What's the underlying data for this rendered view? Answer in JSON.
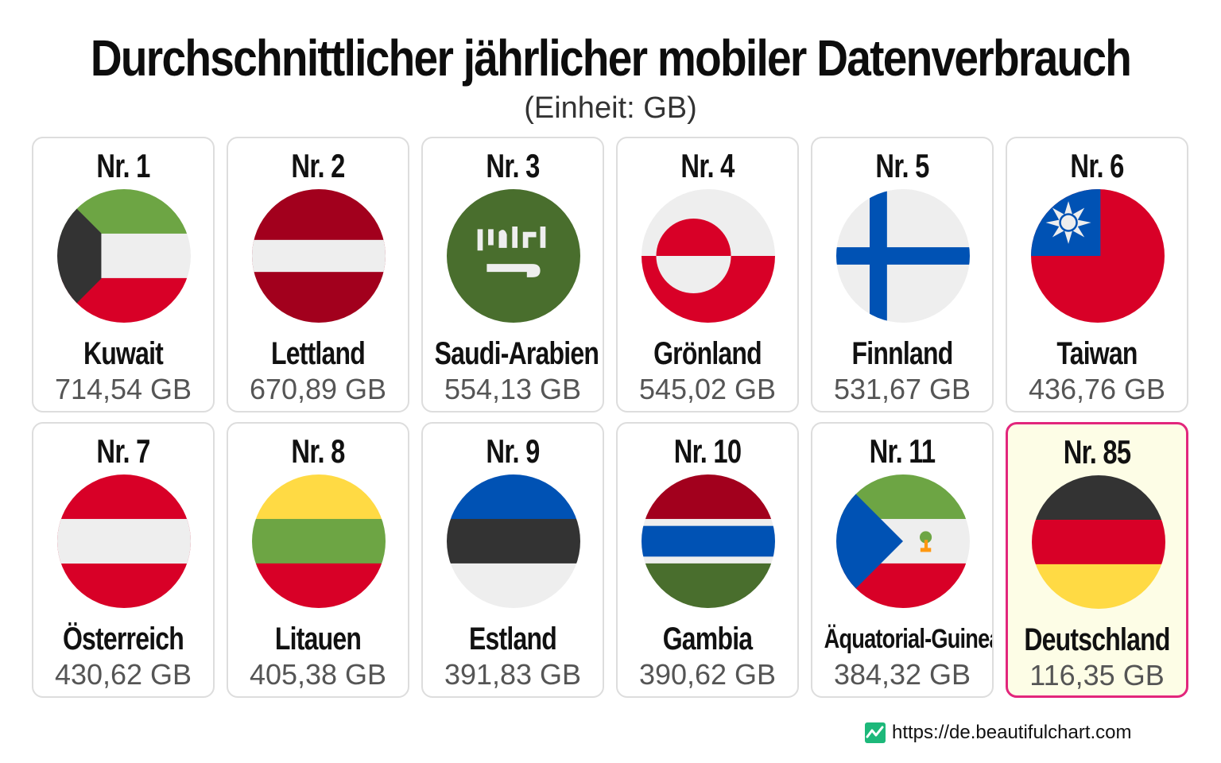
{
  "title": "Durchschnittlicher jährlicher mobiler Datenverbrauch",
  "subtitle": "(Einheit: GB)",
  "footer": {
    "url": "https://de.beautifulchart.com",
    "icon": "chart-line-icon",
    "icon_color": "#1db87a"
  },
  "highlight_color": "#e2267c",
  "chart_data": {
    "type": "table",
    "title": "Durchschnittlicher jährlicher mobiler Datenverbrauch",
    "unit": "GB",
    "entries": [
      {
        "rank": "Nr. 1",
        "country": "Kuwait",
        "value": "714,54 GB",
        "num": 714.54,
        "flag": "kuwait-flag-icon"
      },
      {
        "rank": "Nr. 2",
        "country": "Lettland",
        "value": "670,89 GB",
        "num": 670.89,
        "flag": "latvia-flag-icon"
      },
      {
        "rank": "Nr. 3",
        "country": "Saudi-Arabien",
        "value": "554,13 GB",
        "num": 554.13,
        "flag": "saudi-arabia-flag-icon"
      },
      {
        "rank": "Nr. 4",
        "country": "Grönland",
        "value": "545,02 GB",
        "num": 545.02,
        "flag": "greenland-flag-icon"
      },
      {
        "rank": "Nr. 5",
        "country": "Finnland",
        "value": "531,67 GB",
        "num": 531.67,
        "flag": "finland-flag-icon"
      },
      {
        "rank": "Nr. 6",
        "country": "Taiwan",
        "value": "436,76 GB",
        "num": 436.76,
        "flag": "taiwan-flag-icon"
      },
      {
        "rank": "Nr. 7",
        "country": "Österreich",
        "value": "430,62 GB",
        "num": 430.62,
        "flag": "austria-flag-icon"
      },
      {
        "rank": "Nr. 8",
        "country": "Litauen",
        "value": "405,38 GB",
        "num": 405.38,
        "flag": "lithuania-flag-icon"
      },
      {
        "rank": "Nr. 9",
        "country": "Estland",
        "value": "391,83 GB",
        "num": 391.83,
        "flag": "estonia-flag-icon"
      },
      {
        "rank": "Nr. 10",
        "country": "Gambia",
        "value": "390,62 GB",
        "num": 390.62,
        "flag": "gambia-flag-icon"
      },
      {
        "rank": "Nr. 11",
        "country": "Äquatorial-Guinea",
        "value": "384,32 GB",
        "num": 384.32,
        "flag": "equatorial-guinea-flag-icon"
      },
      {
        "rank": "Nr. 85",
        "country": "Deutschland",
        "value": "116,35 GB",
        "num": 116.35,
        "flag": "germany-flag-icon",
        "highlight": true
      }
    ]
  }
}
